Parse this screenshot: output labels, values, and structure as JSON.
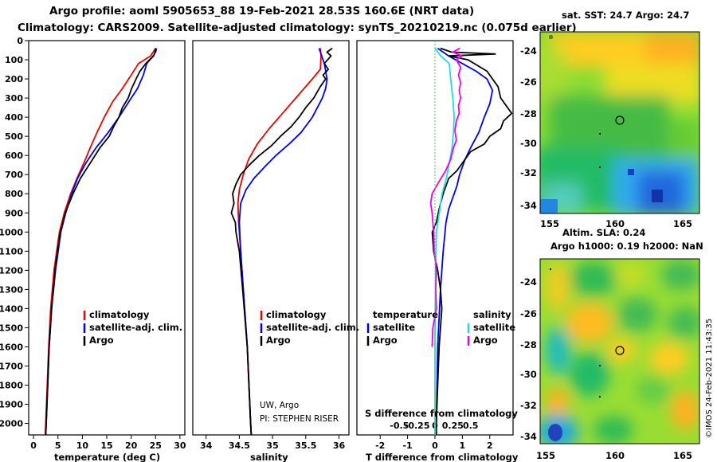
{
  "title_line1": "Argo profile: aoml 5905653_88 19-Feb-2021 28.53S 160.6E (NRT data)",
  "title_line2": "Climatology: CARS2009. Satellite-adjusted climatology: synTS_20210219.nc (0.075d earlier)",
  "colors": {
    "argo": "#000000",
    "climatology": "#ee0000",
    "satellite": "#0000ee",
    "sat_salinity": "#22dddd",
    "salinity_diff": "#ee00ee"
  },
  "depth_axis": {
    "ticks": [
      0,
      100,
      200,
      300,
      400,
      500,
      600,
      700,
      800,
      900,
      1000,
      1100,
      1200,
      1300,
      1400,
      1500,
      1600,
      1700,
      1800,
      1900,
      2000
    ],
    "range": [
      0,
      2060
    ]
  },
  "chart_data": [
    {
      "type": "line",
      "title": "",
      "xlabel": "temperature (deg C)",
      "ylabel": "depth",
      "xlim": [
        -1,
        31
      ],
      "xticks": [
        0,
        5,
        10,
        15,
        20,
        25,
        30
      ],
      "ylim": [
        2060,
        0
      ],
      "legend": {
        "placement": "bottom-right",
        "entries": [
          "climatology",
          "satellite-adj. clim.",
          "Argo"
        ]
      },
      "series": [
        {
          "name": "climatology",
          "color_key": "climatology",
          "depth": [
            40,
            60,
            80,
            120,
            180,
            250,
            320,
            400,
            480,
            560,
            640,
            720,
            800,
            900,
            1000,
            1200,
            1400,
            1600,
            1800,
            2000,
            2060
          ],
          "values": [
            25,
            24.5,
            24,
            21.5,
            20,
            18.2,
            16.2,
            14.5,
            13,
            11.6,
            10.3,
            8.9,
            7.6,
            6.3,
            5.3,
            4.2,
            3.5,
            3.1,
            2.8,
            2.5,
            2.4
          ]
        },
        {
          "name": "satellite-adj. clim.",
          "color_key": "satellite",
          "depth": [
            40,
            60,
            80,
            120,
            180,
            250,
            320,
            400,
            480,
            560,
            640,
            720,
            800,
            900,
            1000,
            1200,
            1400,
            1600,
            1800,
            2000,
            2060
          ],
          "values": [
            25.2,
            25,
            24.5,
            23.2,
            22.5,
            21.3,
            19.5,
            17.5,
            15.3,
            12.8,
            10.7,
            9,
            7.8,
            6.6,
            5.6,
            4.5,
            3.7,
            3.2,
            2.9,
            2.6,
            2.5
          ]
        },
        {
          "name": "Argo",
          "color_key": "argo",
          "depth": [
            40,
            60,
            80,
            120,
            160,
            200,
            250,
            300,
            350,
            400,
            450,
            500,
            560,
            640,
            720,
            800,
            900,
            1000,
            1100,
            1200,
            1400,
            1600,
            1800,
            2000,
            2060
          ],
          "values": [
            25.1,
            24.9,
            24.6,
            23,
            21.8,
            21,
            20.1,
            19.4,
            18.2,
            17.5,
            16.4,
            15.5,
            13.6,
            11.6,
            9.6,
            8.1,
            6.5,
            5.5,
            4.9,
            4.4,
            3.7,
            3.2,
            2.9,
            2.6,
            2.5
          ]
        }
      ]
    },
    {
      "type": "line",
      "title": "",
      "xlabel": "salinity",
      "ylabel": "depth",
      "xlim": [
        33.8,
        36.15
      ],
      "xticks": [
        34,
        34.5,
        35,
        35.5,
        36
      ],
      "ylim": [
        2060,
        0
      ],
      "legend": {
        "placement": "bottom-right",
        "entries": [
          "climatology",
          "satellite-adj. clim.",
          "Argo"
        ]
      },
      "annotation": [
        "UW, Argo",
        "PI: STEPHEN RISER"
      ],
      "series": [
        {
          "name": "climatology",
          "color_key": "climatology",
          "depth": [
            40,
            80,
            150,
            200,
            300,
            380,
            460,
            540,
            620,
            700,
            780,
            850,
            950,
            1100,
            1300,
            1600,
            2000,
            2060
          ],
          "values": [
            35.72,
            35.73,
            35.72,
            35.6,
            35.35,
            35.15,
            34.95,
            34.77,
            34.64,
            34.56,
            34.5,
            34.48,
            34.49,
            34.52,
            34.56,
            34.62,
            34.67,
            34.68
          ]
        },
        {
          "name": "satellite-adj. clim.",
          "color_key": "satellite",
          "depth": [
            40,
            60,
            80,
            120,
            160,
            200,
            250,
            300,
            400,
            480,
            540,
            600,
            660,
            720,
            780,
            850,
            950,
            1100,
            1300,
            1600,
            2000,
            2060
          ],
          "values": [
            35.7,
            35.72,
            35.74,
            35.78,
            35.8,
            35.82,
            35.8,
            35.75,
            35.6,
            35.43,
            35.25,
            35.05,
            34.88,
            34.72,
            34.6,
            34.52,
            34.5,
            34.52,
            34.56,
            34.62,
            34.67,
            34.68
          ]
        },
        {
          "name": "Argo",
          "color_key": "argo",
          "depth": [
            40,
            60,
            80,
            120,
            150,
            180,
            200,
            240,
            300,
            350,
            400,
            450,
            500,
            550,
            600,
            650,
            700,
            750,
            800,
            850,
            900,
            950,
            1000,
            1100,
            1300,
            1600,
            2000,
            2060
          ],
          "values": [
            35.9,
            35.82,
            35.88,
            35.78,
            35.84,
            35.76,
            35.8,
            35.72,
            35.62,
            35.5,
            35.4,
            35.28,
            35.12,
            34.98,
            34.8,
            34.65,
            34.52,
            34.45,
            34.4,
            34.42,
            34.38,
            34.44,
            34.45,
            34.5,
            34.55,
            34.62,
            34.67,
            34.68
          ]
        }
      ]
    },
    {
      "type": "line",
      "title": "",
      "xlabel": "T difference from climatology",
      "ylabel": "depth",
      "xlim": [
        -2.85,
        2.85
      ],
      "xticks": [
        -2,
        -1,
        0,
        1,
        2
      ],
      "secondary_xlabel": "S difference from climatology",
      "secondary_xticks": [
        -0.5,
        -0.25,
        0,
        0.25,
        0.5
      ],
      "ylim": [
        2060,
        0
      ],
      "legend": {
        "placement": "bottom",
        "temperature_header": "temperature",
        "salinity_header": "salinity",
        "entries": [
          "satellite",
          "Argo",
          "satellite",
          "Argo"
        ]
      },
      "series": [
        {
          "name": "T satellite",
          "color_key": "satellite",
          "depth": [
            40,
            80,
            120,
            160,
            200,
            260,
            330,
            400,
            480,
            560,
            620,
            700,
            760,
            800,
            880,
            950,
            1100,
            1300,
            1600,
            2000,
            2060
          ],
          "values": [
            0.1,
            0.5,
            1,
            1.5,
            1.9,
            2.1,
            2,
            1.8,
            1.6,
            1.3,
            1.1,
            0.9,
            0.8,
            0.7,
            0.5,
            0.4,
            0.3,
            0.2,
            0.1,
            0.05,
            0.05
          ]
        },
        {
          "name": "T Argo",
          "color_key": "argo",
          "depth": [
            40,
            60,
            70,
            80,
            100,
            160,
            200,
            240,
            300,
            340,
            380,
            420,
            460,
            500,
            540,
            580,
            620,
            680,
            720,
            800,
            880,
            950,
            1000,
            1100,
            1200,
            1300,
            1400,
            1500,
            1600,
            1800,
            2000,
            2060
          ],
          "values": [
            0.2,
            0.6,
            2.2,
            0.5,
            1.2,
            1.9,
            2.1,
            2.3,
            2.4,
            2.6,
            2.8,
            2.5,
            2.4,
            2,
            1.8,
            1.3,
            1.1,
            0.8,
            0.5,
            0.3,
            0.15,
            0.05,
            -0.1,
            -0.05,
            0.1,
            0.2,
            0.25,
            0.2,
            0.15,
            0.1,
            0.05,
            0.05
          ]
        },
        {
          "name": "S satellite",
          "color_key": "sat_salinity",
          "depth": [
            40,
            80,
            120,
            200,
            300,
            400,
            480,
            560,
            640,
            720,
            800,
            900,
            1000,
            1200,
            1500,
            1800,
            2000,
            2060
          ],
          "values": [
            0,
            0.08,
            0.2,
            0.22,
            0.25,
            0.27,
            0.26,
            0.24,
            0.2,
            0.16,
            0.1,
            0.06,
            0.02,
            0.01,
            0,
            0,
            0,
            0
          ]
        },
        {
          "name": "S Argo",
          "color_key": "salinity_diff",
          "depth": [
            40,
            60,
            80,
            100,
            140,
            180,
            220,
            260,
            300,
            340,
            380,
            420,
            470,
            520,
            560,
            620,
            680,
            740,
            800,
            850,
            900,
            1000,
            1100,
            1200,
            1300,
            1400,
            1500,
            1600
          ],
          "values": [
            0.35,
            0.25,
            0.38,
            0.3,
            0.36,
            0.33,
            0.36,
            0.34,
            0.36,
            0.33,
            0.34,
            0.3,
            0.28,
            0.3,
            0.26,
            0.22,
            0.15,
            0.05,
            -0.04,
            -0.06,
            -0.04,
            -0.02,
            -0.01,
            0.02,
            0.01,
            0.02,
            -0.03,
            -0.04
          ]
        }
      ]
    }
  ],
  "maps": {
    "top": {
      "title": "sat. SST: 24.7 Argo: 24.7",
      "lon_ticks": [
        "155",
        "160",
        "165"
      ],
      "lat_ticks": [
        "-24",
        "-26",
        "-28",
        "-30",
        "-32",
        "-34"
      ]
    },
    "bottom": {
      "title1": "Altim. SLA: 0.24",
      "title2": "Argo h1000: 0.19 h2000: NaN",
      "lon_ticks": [
        "155",
        "160",
        "165"
      ],
      "lat_ticks": [
        "-24",
        "-26",
        "-28",
        "-30",
        "-32",
        "-34"
      ]
    }
  },
  "footer_stamp": "©IMOS 24-Feb-2021 11:43:35"
}
